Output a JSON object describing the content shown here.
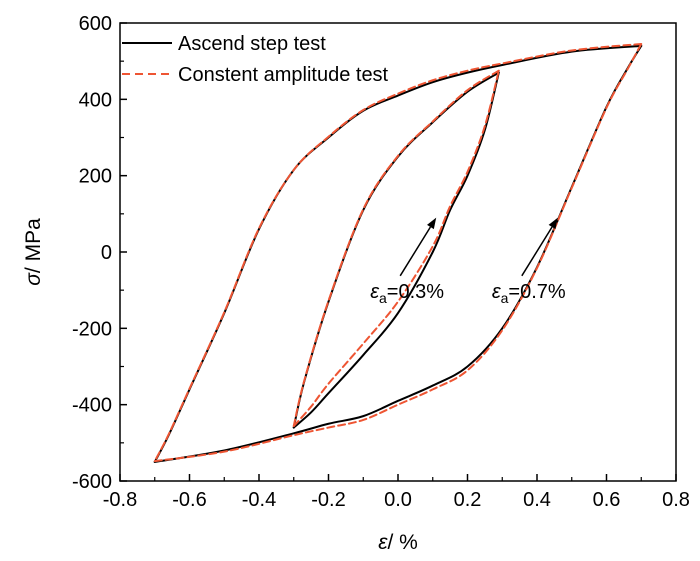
{
  "chart_data": {
    "type": "line",
    "title": "",
    "xlabel": {
      "symbol": "ε",
      "unit": "/ %"
    },
    "ylabel": {
      "symbol": "σ",
      "unit": "/ MPa"
    },
    "xlim": [
      -0.8,
      0.8
    ],
    "ylim": [
      -600,
      600
    ],
    "xticks": [
      "-0.8",
      "-0.6",
      "-0.4",
      "-0.2",
      "0.0",
      "0.2",
      "0.4",
      "0.6",
      "0.8"
    ],
    "yticks": [
      "-600",
      "-400",
      "-200",
      "0",
      "200",
      "400",
      "600"
    ],
    "grid": false,
    "legend_position": "top-left",
    "series": [
      {
        "name": "Ascend step test",
        "style": "solid",
        "color": "#000000",
        "loops": [
          {
            "label": "0.7%",
            "branches": [
              [
                [
                  0.7,
                  540
                ],
                [
                  0.5,
                  525
                ],
                [
                  0.3,
                  490
                ],
                [
                  0.2,
                  470
                ],
                [
                  0.1,
                  445
                ],
                [
                  0.0,
                  410
                ],
                [
                  -0.1,
                  370
                ],
                [
                  -0.2,
                  300
                ],
                [
                  -0.3,
                  215
                ],
                [
                  -0.4,
                  60
                ],
                [
                  -0.5,
                  -160
                ],
                [
                  -0.6,
                  -360
                ],
                [
                  -0.66,
                  -480
                ],
                [
                  -0.7,
                  -550
                ]
              ],
              [
                [
                  -0.7,
                  -550
                ],
                [
                  -0.5,
                  -520
                ],
                [
                  -0.3,
                  -475
                ],
                [
                  -0.2,
                  -450
                ],
                [
                  -0.1,
                  -430
                ],
                [
                  0.0,
                  -390
                ],
                [
                  0.1,
                  -350
                ],
                [
                  0.2,
                  -300
                ],
                [
                  0.3,
                  -200
                ],
                [
                  0.4,
                  -40
                ],
                [
                  0.5,
                  170
                ],
                [
                  0.6,
                  380
                ],
                [
                  0.66,
                  480
                ],
                [
                  0.7,
                  540
                ]
              ]
            ]
          },
          {
            "label": "0.3%",
            "branches": [
              [
                [
                  0.29,
                  470
                ],
                [
                  0.2,
                  420
                ],
                [
                  0.1,
                  340
                ],
                [
                  0.0,
                  250
                ],
                [
                  -0.1,
                  110
                ],
                [
                  -0.2,
                  -130
                ],
                [
                  -0.27,
                  -340
                ],
                [
                  -0.3,
                  -460
                ]
              ],
              [
                [
                  -0.3,
                  -460
                ],
                [
                  -0.25,
                  -420
                ],
                [
                  -0.2,
                  -370
                ],
                [
                  -0.1,
                  -270
                ],
                [
                  0.0,
                  -160
                ],
                [
                  0.1,
                  0
                ],
                [
                  0.15,
                  110
                ],
                [
                  0.2,
                  200
                ],
                [
                  0.25,
                  320
                ],
                [
                  0.29,
                  470
                ]
              ]
            ]
          }
        ]
      },
      {
        "name": "Constent amplitude test",
        "style": "dashed",
        "color": "#ee5533",
        "loops": [
          {
            "label": "0.7%",
            "branches": [
              [
                [
                  0.7,
                  545
                ],
                [
                  0.5,
                  528
                ],
                [
                  0.3,
                  494
                ],
                [
                  0.2,
                  475
                ],
                [
                  0.1,
                  450
                ],
                [
                  0.0,
                  415
                ],
                [
                  -0.1,
                  372
                ],
                [
                  -0.2,
                  302
                ],
                [
                  -0.3,
                  215
                ],
                [
                  -0.4,
                  62
                ],
                [
                  -0.5,
                  -158
                ],
                [
                  -0.6,
                  -358
                ],
                [
                  -0.66,
                  -478
                ],
                [
                  -0.7,
                  -548
                ]
              ],
              [
                [
                  -0.7,
                  -548
                ],
                [
                  -0.5,
                  -523
                ],
                [
                  -0.3,
                  -480
                ],
                [
                  -0.2,
                  -460
                ],
                [
                  -0.1,
                  -440
                ],
                [
                  0.0,
                  -400
                ],
                [
                  0.1,
                  -360
                ],
                [
                  0.2,
                  -310
                ],
                [
                  0.3,
                  -205
                ],
                [
                  0.4,
                  -42
                ],
                [
                  0.5,
                  168
                ],
                [
                  0.6,
                  378
                ],
                [
                  0.66,
                  478
                ],
                [
                  0.7,
                  545
                ]
              ]
            ]
          },
          {
            "label": "0.3%",
            "branches": [
              [
                [
                  0.29,
                  475
                ],
                [
                  0.2,
                  424
                ],
                [
                  0.1,
                  342
                ],
                [
                  0.0,
                  252
                ],
                [
                  -0.1,
                  112
                ],
                [
                  -0.2,
                  -128
                ],
                [
                  -0.27,
                  -338
                ],
                [
                  -0.3,
                  -456
                ]
              ],
              [
                [
                  -0.3,
                  -456
                ],
                [
                  -0.25,
                  -405
                ],
                [
                  -0.2,
                  -345
                ],
                [
                  -0.1,
                  -240
                ],
                [
                  0.0,
                  -130
                ],
                [
                  0.1,
                  15
                ],
                [
                  0.15,
                  120
                ],
                [
                  0.2,
                  210
                ],
                [
                  0.25,
                  330
                ],
                [
                  0.29,
                  475
                ]
              ]
            ]
          }
        ]
      }
    ],
    "annotations": [
      {
        "symbol": "ε",
        "sub": "a",
        "text": "=0.3%",
        "text_at": [
          -0.08,
          -120
        ],
        "point": [
          0.11,
          90
        ]
      },
      {
        "symbol": "ε",
        "sub": "a",
        "text": "=0.7%",
        "text_at": [
          0.27,
          -120
        ],
        "point": [
          0.46,
          90
        ]
      }
    ]
  }
}
